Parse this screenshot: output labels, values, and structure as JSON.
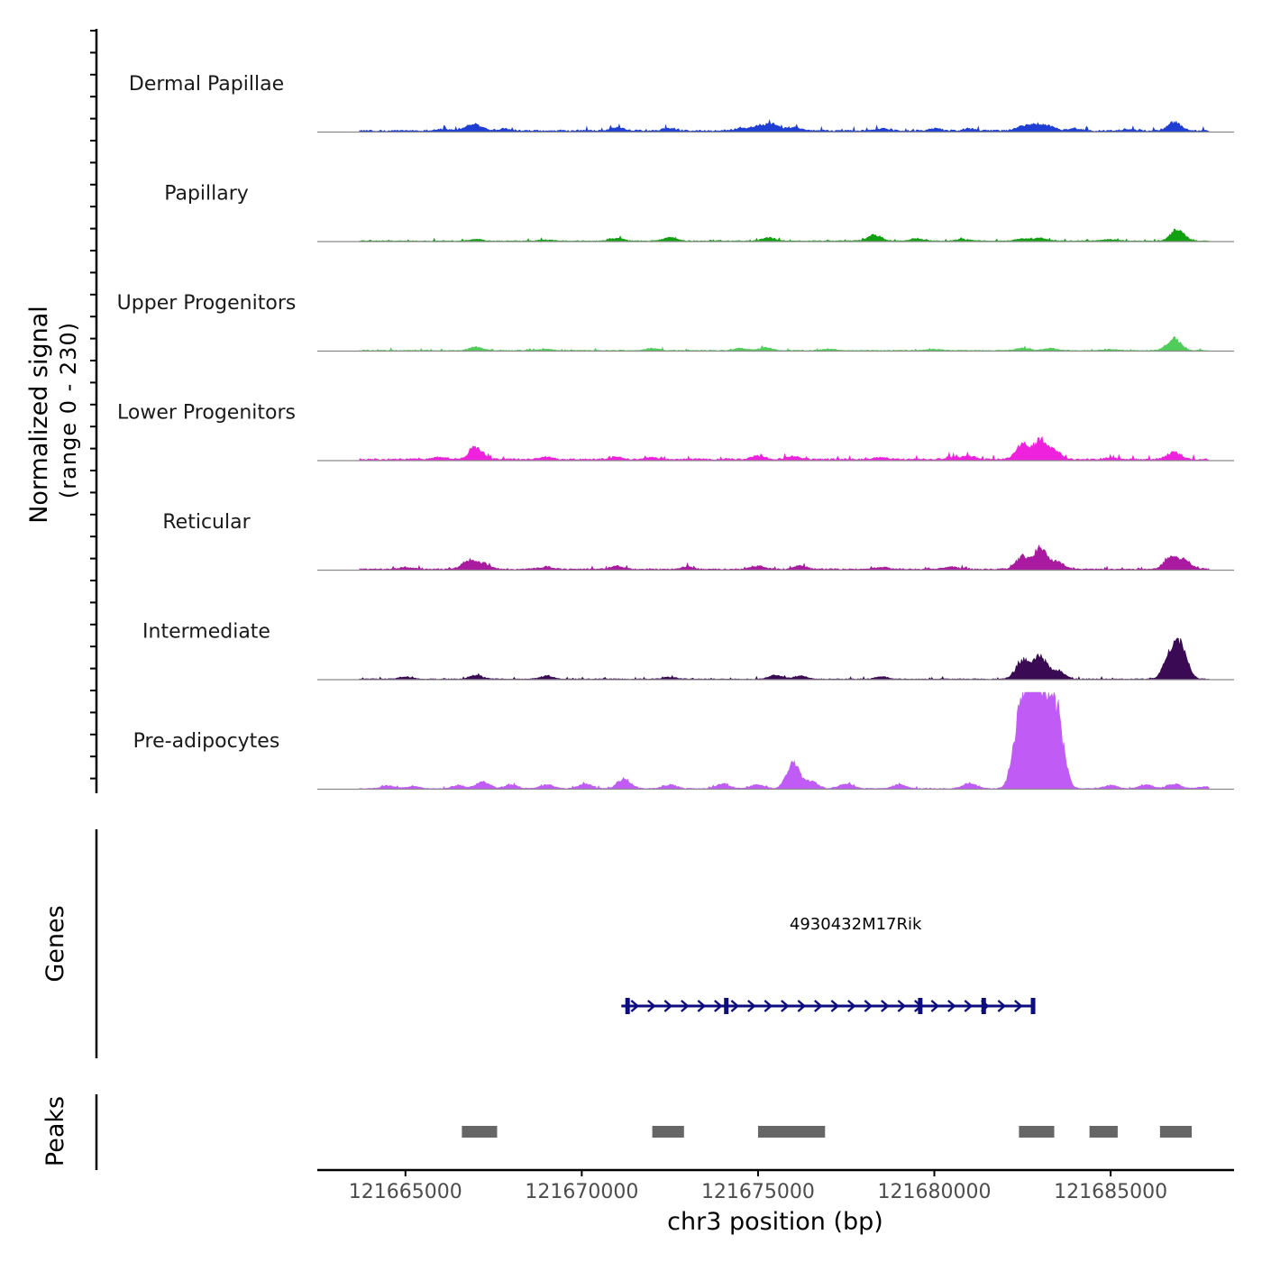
{
  "chart_data": {
    "type": "area",
    "title": "",
    "ylabel_line1": "Normalized signal",
    "ylabel_line2": "(range 0 - 230)",
    "xlabel": "chr3 position (bp)",
    "x_range": [
      121662500,
      121688500
    ],
    "y_range": [
      0,
      230
    ],
    "x_ticks": [
      121665000,
      121670000,
      121675000,
      121680000,
      121685000
    ],
    "x_tick_labels": [
      "121665000",
      "121670000",
      "121675000",
      "121680000",
      "121685000"
    ],
    "signal_start": 121663700,
    "signal_end": 121687800,
    "tracks": [
      {
        "name": "Dermal Papillae",
        "color": "#1f3fd4",
        "baseline": 4,
        "peaks": [
          {
            "x": 121666000,
            "h": 4
          },
          {
            "x": 121666700,
            "h": 6
          },
          {
            "x": 121667000,
            "h": 14
          },
          {
            "x": 121667800,
            "h": 5
          },
          {
            "x": 121671000,
            "h": 8
          },
          {
            "x": 121672500,
            "h": 6
          },
          {
            "x": 121674500,
            "h": 5
          },
          {
            "x": 121675000,
            "h": 12
          },
          {
            "x": 121675400,
            "h": 17
          },
          {
            "x": 121676000,
            "h": 9
          },
          {
            "x": 121678500,
            "h": 6
          },
          {
            "x": 121680000,
            "h": 5
          },
          {
            "x": 121681000,
            "h": 5
          },
          {
            "x": 121682500,
            "h": 11
          },
          {
            "x": 121682900,
            "h": 15
          },
          {
            "x": 121683300,
            "h": 10
          },
          {
            "x": 121684000,
            "h": 5
          },
          {
            "x": 121685500,
            "h": 4
          },
          {
            "x": 121686800,
            "h": 22
          }
        ]
      },
      {
        "name": "Papillary",
        "color": "#11a011",
        "baseline": 2,
        "peaks": [
          {
            "x": 121667000,
            "h": 4
          },
          {
            "x": 121669000,
            "h": 3
          },
          {
            "x": 121671000,
            "h": 7
          },
          {
            "x": 121672500,
            "h": 9
          },
          {
            "x": 121675300,
            "h": 8
          },
          {
            "x": 121678300,
            "h": 16
          },
          {
            "x": 121679500,
            "h": 6
          },
          {
            "x": 121680800,
            "h": 4
          },
          {
            "x": 121682500,
            "h": 6
          },
          {
            "x": 121683000,
            "h": 7
          },
          {
            "x": 121685000,
            "h": 4
          },
          {
            "x": 121686900,
            "h": 30
          }
        ]
      },
      {
        "name": "Upper Progenitors",
        "color": "#50cc5a",
        "baseline": 2,
        "peaks": [
          {
            "x": 121667000,
            "h": 8
          },
          {
            "x": 121669000,
            "h": 3
          },
          {
            "x": 121672000,
            "h": 5
          },
          {
            "x": 121674500,
            "h": 5
          },
          {
            "x": 121675200,
            "h": 7
          },
          {
            "x": 121677000,
            "h": 4
          },
          {
            "x": 121680000,
            "h": 3
          },
          {
            "x": 121682500,
            "h": 6
          },
          {
            "x": 121683300,
            "h": 5
          },
          {
            "x": 121685000,
            "h": 3
          },
          {
            "x": 121686800,
            "h": 32
          }
        ]
      },
      {
        "name": "Lower Progenitors",
        "color": "#ee22dd",
        "baseline": 4,
        "peaks": [
          {
            "x": 121666000,
            "h": 6
          },
          {
            "x": 121667000,
            "h": 30
          },
          {
            "x": 121669000,
            "h": 5
          },
          {
            "x": 121671000,
            "h": 6
          },
          {
            "x": 121672000,
            "h": 5
          },
          {
            "x": 121675000,
            "h": 9
          },
          {
            "x": 121676000,
            "h": 8
          },
          {
            "x": 121678500,
            "h": 5
          },
          {
            "x": 121680500,
            "h": 6
          },
          {
            "x": 121681000,
            "h": 8
          },
          {
            "x": 121682500,
            "h": 38
          },
          {
            "x": 121683000,
            "h": 46
          },
          {
            "x": 121683400,
            "h": 22
          },
          {
            "x": 121685000,
            "h": 4
          },
          {
            "x": 121686800,
            "h": 18
          }
        ]
      },
      {
        "name": "Reticular",
        "color": "#aa1aa0",
        "baseline": 3,
        "peaks": [
          {
            "x": 121665000,
            "h": 5
          },
          {
            "x": 121666800,
            "h": 22
          },
          {
            "x": 121667200,
            "h": 15
          },
          {
            "x": 121669000,
            "h": 6
          },
          {
            "x": 121671000,
            "h": 7
          },
          {
            "x": 121673000,
            "h": 6
          },
          {
            "x": 121675000,
            "h": 9
          },
          {
            "x": 121676200,
            "h": 8
          },
          {
            "x": 121678500,
            "h": 5
          },
          {
            "x": 121680500,
            "h": 6
          },
          {
            "x": 121682500,
            "h": 30
          },
          {
            "x": 121683000,
            "h": 54
          },
          {
            "x": 121683500,
            "h": 18
          },
          {
            "x": 121686700,
            "h": 28
          },
          {
            "x": 121687100,
            "h": 22
          }
        ]
      },
      {
        "name": "Intermediate",
        "color": "#3a0a55",
        "baseline": 2,
        "peaks": [
          {
            "x": 121665000,
            "h": 5
          },
          {
            "x": 121667000,
            "h": 9
          },
          {
            "x": 121669000,
            "h": 8
          },
          {
            "x": 121672500,
            "h": 5
          },
          {
            "x": 121675500,
            "h": 10
          },
          {
            "x": 121676200,
            "h": 8
          },
          {
            "x": 121678500,
            "h": 6
          },
          {
            "x": 121682500,
            "h": 48
          },
          {
            "x": 121683000,
            "h": 56
          },
          {
            "x": 121683500,
            "h": 22
          },
          {
            "x": 121686700,
            "h": 60
          },
          {
            "x": 121687000,
            "h": 72
          }
        ]
      },
      {
        "name": "Pre-adipocytes",
        "color": "#c05cf5",
        "baseline": 2,
        "peaks": [
          {
            "x": 121664500,
            "h": 8
          },
          {
            "x": 121665200,
            "h": 6
          },
          {
            "x": 121666500,
            "h": 8
          },
          {
            "x": 121667200,
            "h": 18
          },
          {
            "x": 121668000,
            "h": 10
          },
          {
            "x": 121669000,
            "h": 10
          },
          {
            "x": 121670100,
            "h": 12
          },
          {
            "x": 121671200,
            "h": 24
          },
          {
            "x": 121672500,
            "h": 10
          },
          {
            "x": 121674000,
            "h": 12
          },
          {
            "x": 121675000,
            "h": 10
          },
          {
            "x": 121676000,
            "h": 62
          },
          {
            "x": 121676500,
            "h": 18
          },
          {
            "x": 121677500,
            "h": 12
          },
          {
            "x": 121679000,
            "h": 10
          },
          {
            "x": 121681000,
            "h": 14
          },
          {
            "x": 121682400,
            "h": 150
          },
          {
            "x": 121682700,
            "h": 200
          },
          {
            "x": 121682900,
            "h": 118
          },
          {
            "x": 121683200,
            "h": 175
          },
          {
            "x": 121683500,
            "h": 155
          },
          {
            "x": 121685000,
            "h": 8
          },
          {
            "x": 121686000,
            "h": 10
          },
          {
            "x": 121686800,
            "h": 12
          },
          {
            "x": 121687700,
            "h": 5
          }
        ]
      }
    ],
    "genes_label": "Genes",
    "genes": [
      {
        "name": "4930432M17Rik",
        "start": 121671200,
        "end": 121682800,
        "strand": "+",
        "color": "#0d0d80",
        "exons": [
          121671300,
          121674100,
          121679600,
          121681400,
          121682800
        ]
      }
    ],
    "peaks_label": "Peaks",
    "peak_color": "#666666",
    "peaks": [
      {
        "start": 121666600,
        "end": 121667600
      },
      {
        "start": 121672000,
        "end": 121672900
      },
      {
        "start": 121675000,
        "end": 121676900
      },
      {
        "start": 121682400,
        "end": 121683400
      },
      {
        "start": 121684400,
        "end": 121685200
      },
      {
        "start": 121686400,
        "end": 121687300
      }
    ]
  }
}
